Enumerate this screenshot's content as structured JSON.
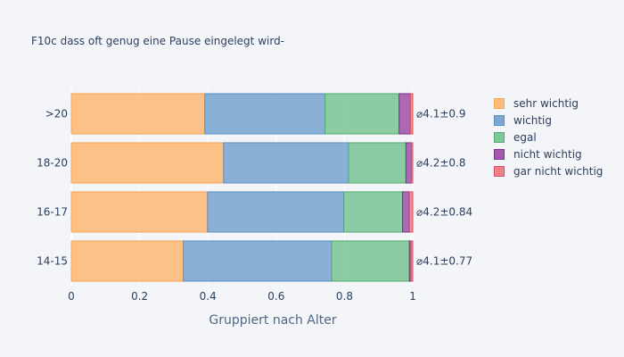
{
  "chart_data": {
    "type": "bar",
    "orientation": "horizontal",
    "barmode": "stack",
    "title": "F10c dass oft genug eine Pause eingelegt wird-",
    "xlabel": "Gruppiert nach Alter",
    "ylabel": "",
    "xlim": [
      0,
      1.18
    ],
    "x_ticks": [
      "0",
      "0.2",
      "0.4",
      "0.6",
      "0.8",
      "1"
    ],
    "categories": [
      ">20",
      "18-20",
      "16-17",
      "14-15"
    ],
    "series": [
      {
        "name": "sehr wichtig",
        "color": "#fdbb79",
        "border": "#f7a454",
        "values": [
          0.391,
          0.446,
          0.399,
          0.328
        ]
      },
      {
        "name": "wichtig",
        "color": "#7ea8d2",
        "border": "#5b8fc4",
        "values": [
          0.352,
          0.366,
          0.399,
          0.434
        ]
      },
      {
        "name": "egal",
        "color": "#7fc89a",
        "border": "#4fae6f",
        "values": [
          0.217,
          0.168,
          0.172,
          0.228
        ]
      },
      {
        "name": "nicht wichtig",
        "color": "#a35aad",
        "border": "#7b3487",
        "values": [
          0.033,
          0.016,
          0.02,
          0.005
        ]
      },
      {
        "name": "gar nicht wichtig",
        "color": "#ee828c",
        "border": "#d9535f",
        "values": [
          0.007,
          0.004,
          0.01,
          0.005
        ]
      }
    ],
    "annotations": [
      "⌀4.1±0.9",
      "⌀4.2±0.8",
      "⌀4.2±0.84",
      "⌀4.1±0.77"
    ],
    "grid": true,
    "legend_position": "right"
  }
}
